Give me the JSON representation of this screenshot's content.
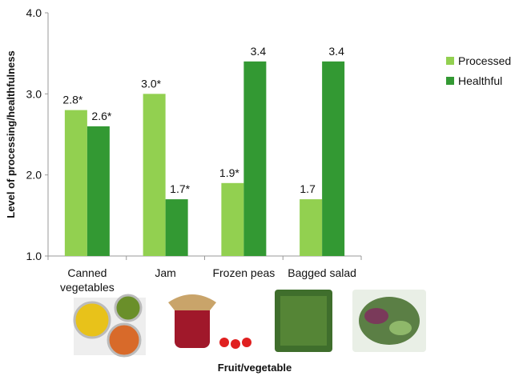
{
  "chart_data": {
    "type": "bar",
    "title": "",
    "xlabel": "Fruit/vegetable",
    "ylabel": "Level of processing/healthfulness",
    "ylim": [
      1.0,
      4.0
    ],
    "yticks": [
      "1.0",
      "2.0",
      "3.0",
      "4.0"
    ],
    "categories": [
      "Canned vegetables",
      "Jam",
      "Frozen peas",
      "Bagged salad"
    ],
    "category_lines": [
      [
        "Canned",
        "vegetables"
      ],
      [
        "Jam"
      ],
      [
        "Frozen peas"
      ],
      [
        "Bagged salad"
      ]
    ],
    "series": [
      {
        "name": "Processed",
        "color": "#92d050",
        "values": [
          2.8,
          3.0,
          1.9,
          1.7
        ],
        "labels": [
          "2.8*",
          "3.0*",
          "1.9*",
          "1.7"
        ]
      },
      {
        "name": "Healthful",
        "color": "#339933",
        "values": [
          2.6,
          1.7,
          3.4,
          3.4
        ],
        "labels": [
          "2.6*",
          "1.7*",
          "3.4",
          "3.4"
        ]
      }
    ],
    "legend_position": "right",
    "grid": false
  }
}
